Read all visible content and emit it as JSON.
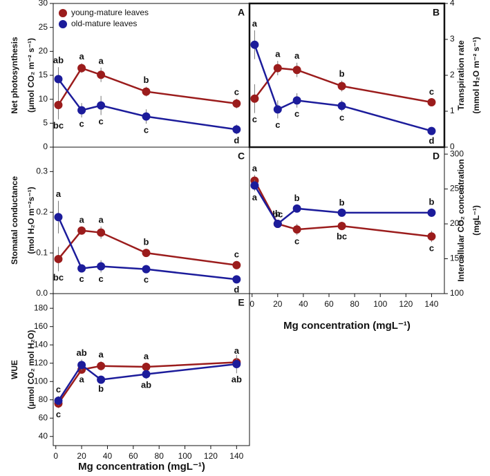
{
  "chart_data": [
    {
      "type": "line",
      "title": "A",
      "ylabel": [
        "Net photosynthesis",
        "(μmol CO₂ m⁻² s⁻¹)"
      ],
      "legend": "upper left",
      "x": [
        2,
        20,
        35,
        70,
        140
      ],
      "xlim": [
        -2,
        150
      ],
      "ylim": [
        0,
        30
      ],
      "yticks": [
        0,
        5,
        10,
        15,
        20,
        25,
        30
      ],
      "series": [
        {
          "name": "young-mature leaves",
          "color": "#9b1c1c",
          "values": [
            8.8,
            16.5,
            15.1,
            11.6,
            9.1
          ],
          "errors": [
            3,
            1,
            1.5,
            1,
            1
          ],
          "labels": [
            "bc",
            "a",
            "a",
            "b",
            "c"
          ]
        },
        {
          "name": "old-mature leaves",
          "color": "#1c1c9b",
          "values": [
            14.2,
            7.7,
            8.7,
            6.4,
            3.7
          ],
          "errors": [
            2.5,
            1.5,
            2,
            1.5,
            1
          ],
          "labels": [
            "ab",
            "c",
            "c",
            "c",
            "d"
          ]
        }
      ]
    },
    {
      "type": "line",
      "title": "B",
      "ylabel": [
        "Transpiration rate",
        "(mmol H₂O m⁻² s⁻¹)"
      ],
      "x": [
        2,
        20,
        35,
        70,
        140
      ],
      "xlim": [
        -2,
        150
      ],
      "y2lim": [
        0,
        4
      ],
      "y2ticks": [
        0,
        1,
        2,
        3,
        4
      ],
      "series": [
        {
          "axis": "y2",
          "color": "#9b1c1c",
          "values": [
            1.35,
            2.2,
            2.15,
            1.7,
            1.25
          ],
          "errors": [
            0.4,
            0.2,
            0.2,
            0.15,
            0.1
          ],
          "labels": [
            "c",
            "a",
            "a",
            "b",
            "c"
          ]
        },
        {
          "axis": "y2",
          "color": "#1c1c9b",
          "values": [
            2.85,
            1.05,
            1.3,
            1.15,
            0.45
          ],
          "errors": [
            0.4,
            0.25,
            0.2,
            0.15,
            0.1
          ],
          "labels": [
            "a",
            "c",
            "c",
            "c",
            "d"
          ]
        }
      ]
    },
    {
      "type": "line",
      "title": "C",
      "ylabel": [
        "Stomatal conductance",
        "(mol H₂O m⁻²s⁻¹)"
      ],
      "x": [
        2,
        20,
        35,
        70,
        140
      ],
      "xlim": [
        -2,
        150
      ],
      "ylim": [
        0,
        0.36
      ],
      "yticks": [
        {
          "value": 0,
          "label": "0.0"
        },
        0.1,
        0.2,
        0.3
      ],
      "series": [
        {
          "color": "#9b1c1c",
          "values": [
            0.085,
            0.155,
            0.15,
            0.1,
            0.07
          ],
          "errors": [
            0.03,
            0.01,
            0.015,
            0.01,
            0.01
          ],
          "labels": [
            "bc",
            "a",
            "a",
            "b",
            "c"
          ]
        },
        {
          "color": "#1c1c9b",
          "values": [
            0.188,
            0.062,
            0.067,
            0.06,
            0.035
          ],
          "errors": [
            0.04,
            0.01,
            0.015,
            0.01,
            0.01
          ],
          "labels": [
            "a",
            "c",
            "c",
            "c",
            "d"
          ]
        }
      ]
    },
    {
      "type": "line",
      "title": "D",
      "ylabel": [
        "Intercellular CO₂ concentration",
        "(mgL⁻¹)"
      ],
      "xlabel": "Mg concentration (mgL⁻¹)",
      "x": [
        2,
        20,
        35,
        70,
        140
      ],
      "xlim": [
        -2,
        150
      ],
      "xticks": [
        0,
        20,
        40,
        60,
        80,
        100,
        120,
        140
      ],
      "y2lim": [
        100,
        310
      ],
      "y2ticks": [
        100,
        150,
        200,
        250,
        300
      ],
      "series": [
        {
          "axis": "y2",
          "color": "#9b1c1c",
          "values": [
            262,
            200,
            192,
            197,
            182
          ],
          "errors": [
            8,
            4,
            8,
            6,
            8
          ],
          "labels": [
            "a",
            "bc",
            "c",
            "bc",
            "c"
          ]
        },
        {
          "axis": "y2",
          "color": "#1c1c9b",
          "values": [
            255,
            200,
            222,
            216,
            216
          ],
          "errors": [
            8,
            5,
            5,
            5,
            6
          ],
          "labels": [
            "a",
            "b",
            "b",
            "b",
            "b"
          ]
        }
      ]
    },
    {
      "type": "line",
      "title": "E",
      "ylabel": [
        "WUE",
        "(μmol CO₂ mol H₂O)"
      ],
      "xlabel": "Mg concentration (mgL⁻¹)",
      "x": [
        2,
        20,
        35,
        70,
        140
      ],
      "xlim": [
        -2,
        150
      ],
      "xticks": [
        0,
        20,
        40,
        60,
        80,
        100,
        120,
        140
      ],
      "ylim": [
        30,
        196
      ],
      "yticks": [
        40,
        60,
        80,
        100,
        120,
        140,
        160,
        180
      ],
      "series": [
        {
          "color": "#9b1c1c",
          "values": [
            76,
            113,
            117,
            116,
            121
          ],
          "errors": [
            5,
            4,
            5,
            4,
            5
          ],
          "labels": [
            "c",
            "a",
            "a",
            "a",
            "a"
          ]
        },
        {
          "color": "#1c1c9b",
          "values": [
            79,
            118,
            102,
            108,
            119
          ],
          "errors": [
            5,
            6,
            3,
            5,
            10
          ],
          "labels": [
            "c",
            "ab",
            "b",
            "ab",
            "ab"
          ]
        }
      ]
    }
  ]
}
